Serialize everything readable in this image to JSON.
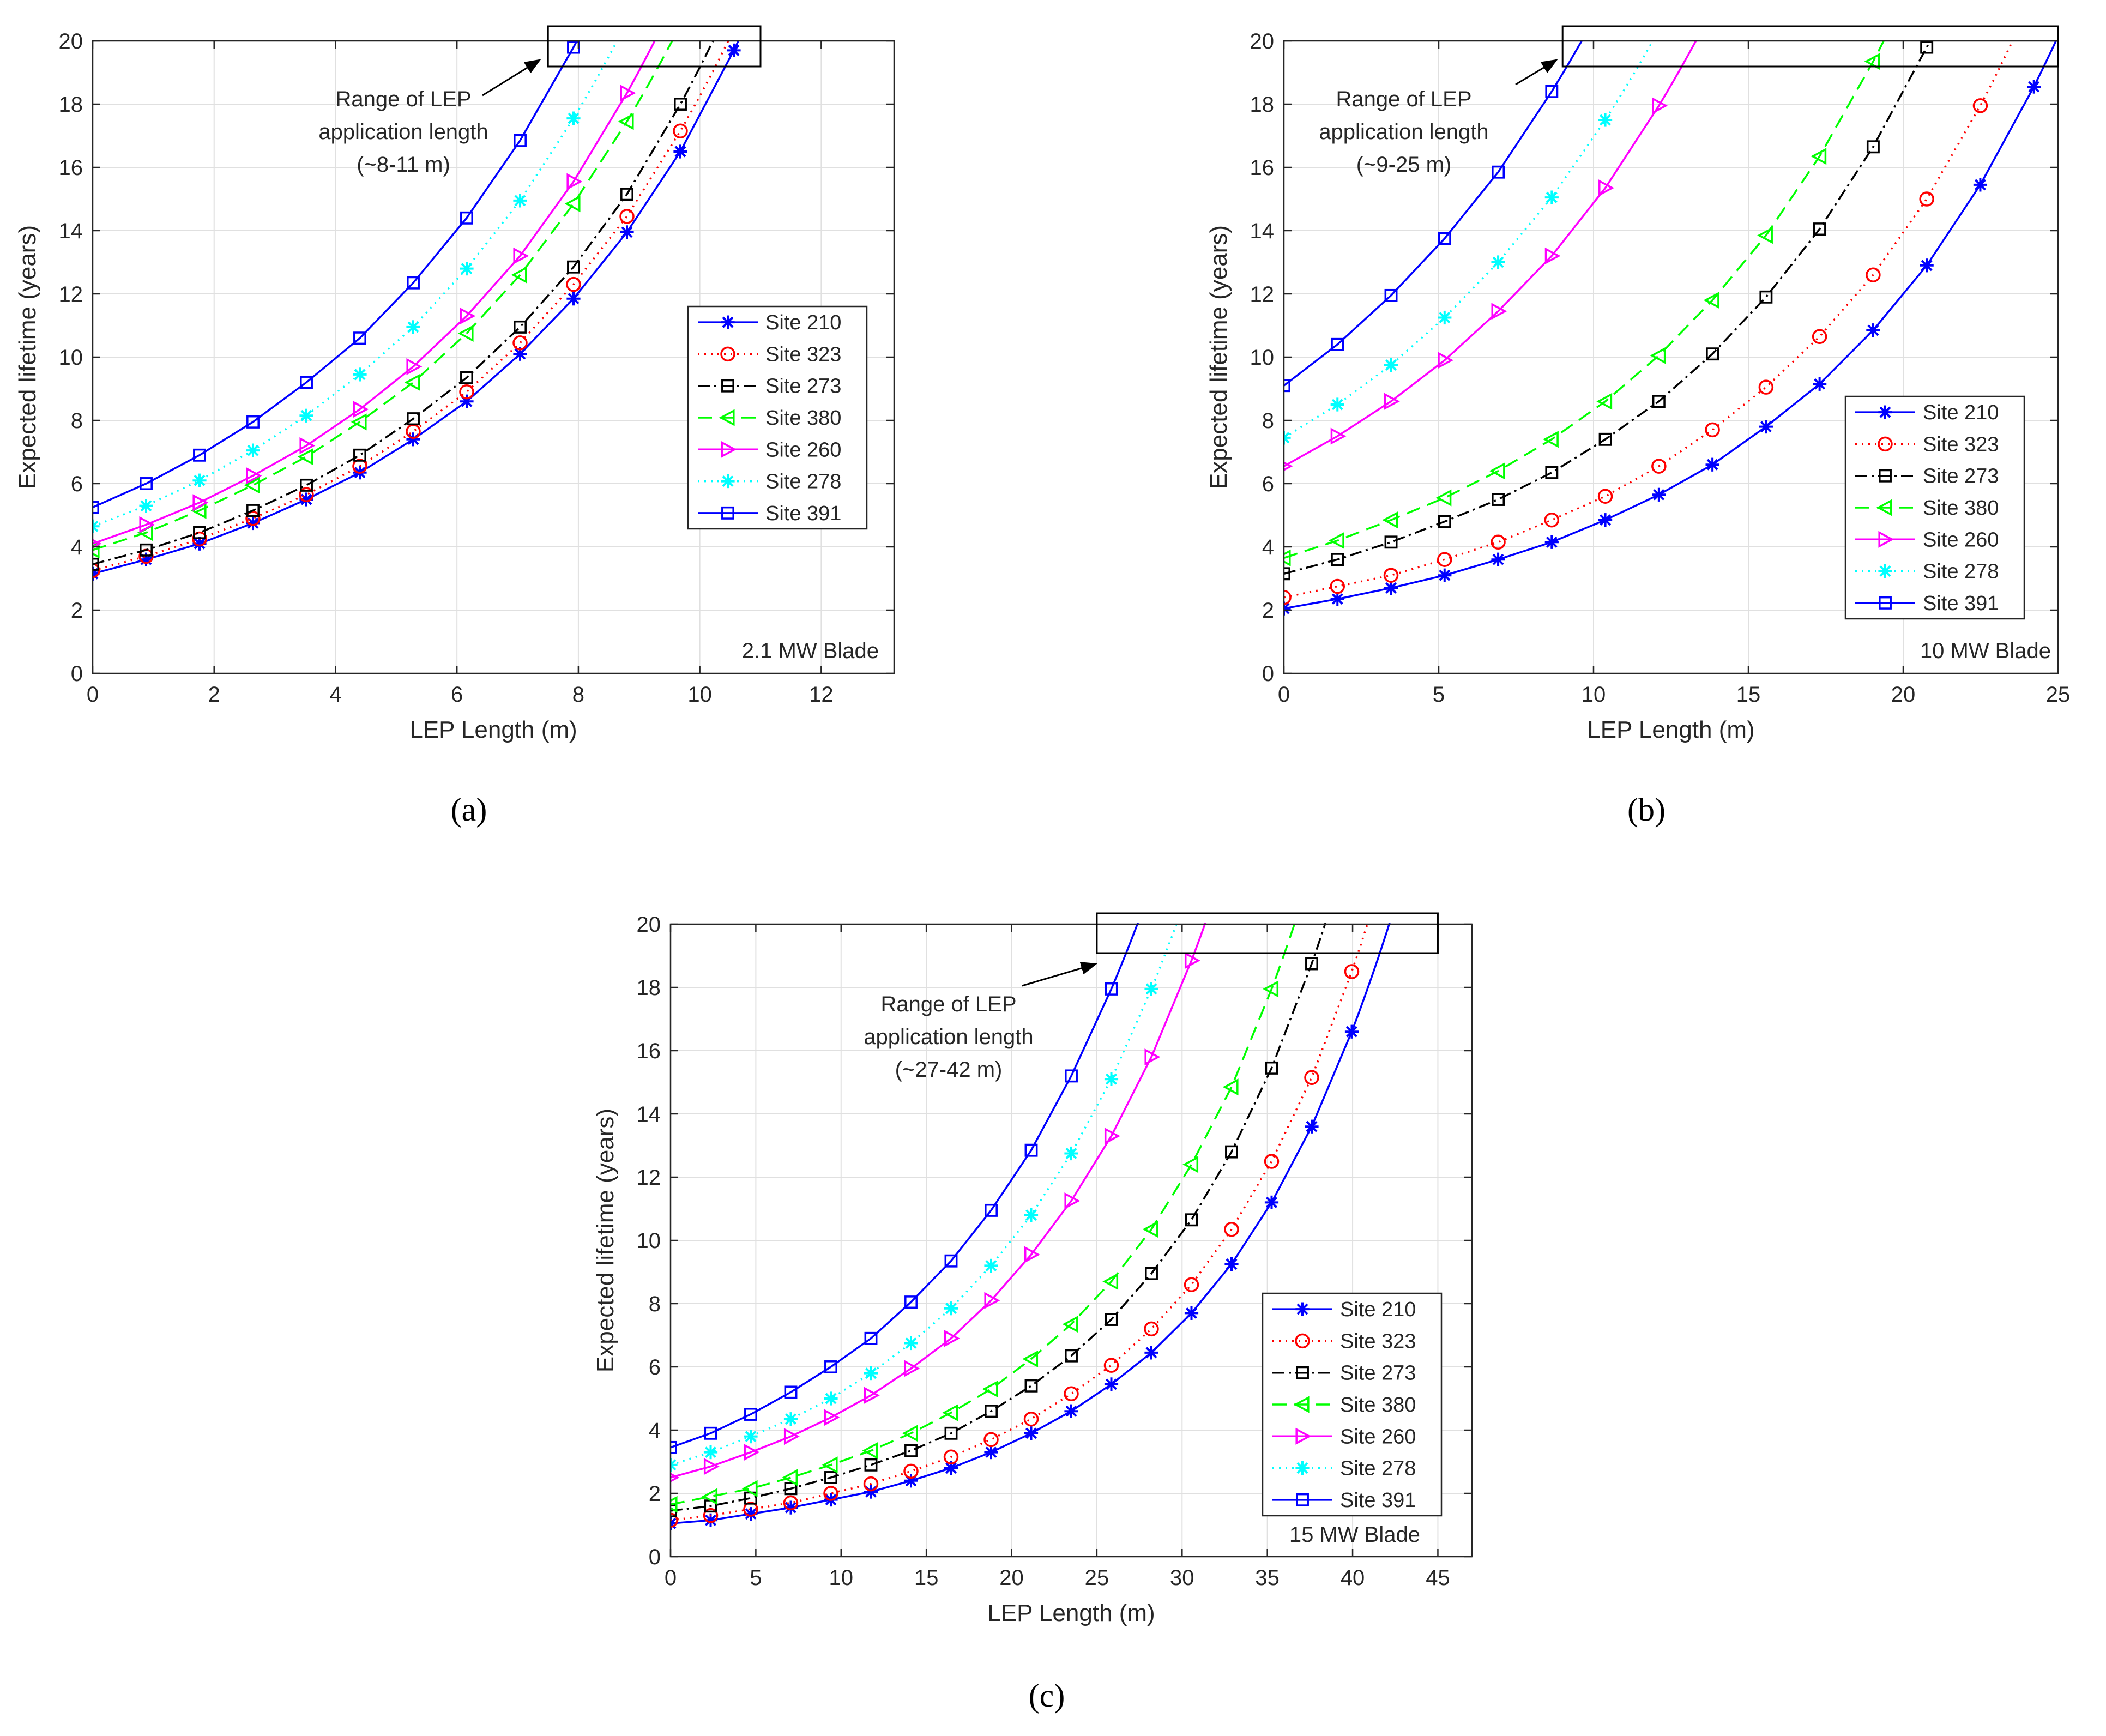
{
  "chart_data": [
    {
      "type": "line",
      "panel_label": "(a)",
      "blade_label": "2.1 MW Blade",
      "xlabel": "LEP Length (m)",
      "ylabel": "Expected lifetime (years)",
      "xlim": [
        0,
        13.2
      ],
      "ylim": [
        0,
        20
      ],
      "xticks": [
        0,
        2,
        4,
        6,
        8,
        10,
        12
      ],
      "yticks": [
        0,
        2,
        4,
        6,
        8,
        10,
        12,
        14,
        16,
        18,
        20
      ],
      "grid": true,
      "legend_position": "right-middle",
      "annotation": {
        "text": [
          "Range of LEP",
          "application length",
          "(~8-11 m)"
        ],
        "range_x": [
          7.5,
          11.0
        ]
      },
      "series": [
        {
          "name": "Site 210",
          "color": "#0000ff",
          "dash": "",
          "marker": "asterisk",
          "x": [
            0,
            0.88,
            1.76,
            2.64,
            3.52,
            4.4,
            5.28,
            6.16,
            7.04,
            7.92,
            8.8,
            9.68,
            10.56
          ],
          "y": [
            3.15,
            3.6,
            4.1,
            4.75,
            5.5,
            6.35,
            7.4,
            8.6,
            10.1,
            11.85,
            13.95,
            16.5,
            19.7
          ]
        },
        {
          "name": "Site 323",
          "color": "#ff0000",
          "dash": "3 9",
          "marker": "circle",
          "x": [
            0,
            0.88,
            1.76,
            2.64,
            3.52,
            4.4,
            5.28,
            6.16,
            7.04,
            7.92,
            8.8,
            9.68
          ],
          "y": [
            3.25,
            3.7,
            4.25,
            4.9,
            5.65,
            6.55,
            7.65,
            8.9,
            10.45,
            12.3,
            14.45,
            17.15
          ]
        },
        {
          "name": "Site 273",
          "color": "#000000",
          "dash": "22 8 4 8",
          "marker": "square",
          "x": [
            0,
            0.88,
            1.76,
            2.64,
            3.52,
            4.4,
            5.28,
            6.16,
            7.04,
            7.92,
            8.8,
            9.68
          ],
          "y": [
            3.45,
            3.9,
            4.45,
            5.15,
            5.95,
            6.9,
            8.05,
            9.35,
            10.95,
            12.85,
            15.15,
            18.0
          ]
        },
        {
          "name": "Site 380",
          "color": "#00ff00",
          "dash": "26 14",
          "marker": "triangle-left",
          "x": [
            0,
            0.88,
            1.76,
            2.64,
            3.52,
            4.4,
            5.28,
            6.16,
            7.04,
            7.92,
            8.8
          ],
          "y": [
            3.9,
            4.45,
            5.15,
            5.95,
            6.85,
            7.95,
            9.2,
            10.75,
            12.6,
            14.85,
            17.45
          ]
        },
        {
          "name": "Site 260",
          "color": "#ff00ff",
          "dash": "",
          "marker": "triangle-right",
          "x": [
            0,
            0.88,
            1.76,
            2.64,
            3.52,
            4.4,
            5.28,
            6.16,
            7.04,
            7.92,
            8.8
          ],
          "y": [
            4.1,
            4.7,
            5.4,
            6.25,
            7.2,
            8.35,
            9.7,
            11.3,
            13.2,
            15.55,
            18.35
          ]
        },
        {
          "name": "Site 278",
          "color": "#00ffff",
          "dash": "3 9",
          "marker": "asterisk",
          "x": [
            0,
            0.88,
            1.76,
            2.64,
            3.52,
            4.4,
            5.28,
            6.16,
            7.04,
            7.92
          ],
          "y": [
            4.65,
            5.3,
            6.1,
            7.05,
            8.15,
            9.45,
            10.95,
            12.8,
            14.95,
            17.55
          ]
        },
        {
          "name": "Site 391",
          "color": "#0000ff",
          "dash": "",
          "marker": "square",
          "x": [
            0,
            0.88,
            1.76,
            2.64,
            3.52,
            4.4,
            5.28,
            6.16,
            7.04,
            7.92
          ],
          "y": [
            5.25,
            6.0,
            6.9,
            7.95,
            9.2,
            10.6,
            12.35,
            14.4,
            16.85,
            19.8
          ]
        }
      ]
    },
    {
      "type": "line",
      "panel_label": "(b)",
      "blade_label": "10 MW Blade",
      "xlabel": "LEP Length (m)",
      "ylabel": "Expected lifetime (years)",
      "xlim": [
        0,
        25
      ],
      "ylim": [
        0,
        20
      ],
      "xticks": [
        0,
        5,
        10,
        15,
        20,
        25
      ],
      "yticks": [
        0,
        2,
        4,
        6,
        8,
        10,
        12,
        14,
        16,
        18,
        20
      ],
      "grid": true,
      "legend_position": "right-lower",
      "annotation": {
        "text": [
          "Range of LEP",
          "application length",
          "(~9-25 m)"
        ],
        "range_x": [
          9.0,
          25.0
        ]
      },
      "series": [
        {
          "name": "Site 210",
          "color": "#0000ff",
          "dash": "",
          "marker": "asterisk",
          "x": [
            0,
            1.73,
            3.46,
            5.19,
            6.92,
            8.65,
            10.38,
            12.11,
            13.84,
            15.57,
            17.3,
            19.03,
            20.76,
            22.49,
            24.22
          ],
          "y": [
            2.05,
            2.35,
            2.7,
            3.1,
            3.6,
            4.15,
            4.85,
            5.65,
            6.6,
            7.8,
            9.15,
            10.85,
            12.9,
            15.45,
            18.55
          ]
        },
        {
          "name": "Site 323",
          "color": "#ff0000",
          "dash": "3 9",
          "marker": "circle",
          "x": [
            0,
            1.73,
            3.46,
            5.19,
            6.92,
            8.65,
            10.38,
            12.11,
            13.84,
            15.57,
            17.3,
            19.03,
            20.76,
            22.49
          ],
          "y": [
            2.4,
            2.75,
            3.1,
            3.6,
            4.15,
            4.85,
            5.6,
            6.55,
            7.7,
            9.05,
            10.65,
            12.6,
            15.0,
            17.95
          ]
        },
        {
          "name": "Site 273",
          "color": "#000000",
          "dash": "22 8 4 8",
          "marker": "square",
          "x": [
            0,
            1.73,
            3.46,
            5.19,
            6.92,
            8.65,
            10.38,
            12.11,
            13.84,
            15.57,
            17.3,
            19.03,
            20.76
          ],
          "y": [
            3.15,
            3.6,
            4.15,
            4.8,
            5.5,
            6.35,
            7.4,
            8.6,
            10.1,
            11.9,
            14.05,
            16.65,
            19.8
          ]
        },
        {
          "name": "Site 380",
          "color": "#00ff00",
          "dash": "26 14",
          "marker": "triangle-left",
          "x": [
            0,
            1.73,
            3.46,
            5.19,
            6.92,
            8.65,
            10.38,
            12.11,
            13.84,
            15.57,
            17.3,
            19.03
          ],
          "y": [
            3.65,
            4.2,
            4.85,
            5.55,
            6.4,
            7.4,
            8.6,
            10.05,
            11.8,
            13.85,
            16.35,
            19.35
          ]
        },
        {
          "name": "Site 260",
          "color": "#ff00ff",
          "dash": "",
          "marker": "triangle-right",
          "x": [
            0,
            1.73,
            3.46,
            5.19,
            6.92,
            8.65,
            10.38,
            12.11
          ],
          "y": [
            6.55,
            7.5,
            8.6,
            9.9,
            11.45,
            13.2,
            15.35,
            17.95
          ]
        },
        {
          "name": "Site 278",
          "color": "#00ffff",
          "dash": "3 9",
          "marker": "asterisk",
          "x": [
            0,
            1.73,
            3.46,
            5.19,
            6.92,
            8.65,
            10.38
          ],
          "y": [
            7.45,
            8.5,
            9.75,
            11.25,
            13.0,
            15.05,
            17.5
          ]
        },
        {
          "name": "Site 391",
          "color": "#0000ff",
          "dash": "",
          "marker": "square",
          "x": [
            0,
            1.73,
            3.46,
            5.19,
            6.92,
            8.65
          ],
          "y": [
            9.1,
            10.4,
            11.95,
            13.75,
            15.85,
            18.4
          ]
        }
      ]
    },
    {
      "type": "line",
      "panel_label": "(c)",
      "blade_label": "15 MW Blade",
      "xlabel": "LEP Length (m)",
      "ylabel": "Expected lifetime (years)",
      "xlim": [
        0,
        47
      ],
      "ylim": [
        0,
        20
      ],
      "xticks": [
        0,
        5,
        10,
        15,
        20,
        25,
        30,
        35,
        40,
        45
      ],
      "yticks": [
        0,
        2,
        4,
        6,
        8,
        10,
        12,
        14,
        16,
        18,
        20
      ],
      "grid": true,
      "legend_position": "right-lower",
      "annotation": {
        "text": [
          "Range of LEP",
          "application length",
          "(~27-42 m)"
        ],
        "range_x": [
          25.0,
          45.0
        ]
      },
      "series": [
        {
          "name": "Site 210",
          "color": "#0000ff",
          "dash": "",
          "marker": "asterisk",
          "x": [
            0,
            2.35,
            4.7,
            7.05,
            9.4,
            11.75,
            14.1,
            16.45,
            18.8,
            21.15,
            23.5,
            25.85,
            28.2,
            30.55,
            32.9,
            35.25,
            37.6,
            39.95
          ],
          "y": [
            1.05,
            1.15,
            1.35,
            1.55,
            1.8,
            2.05,
            2.4,
            2.8,
            3.3,
            3.9,
            4.6,
            5.45,
            6.45,
            7.7,
            9.25,
            11.2,
            13.6,
            16.6
          ]
        },
        {
          "name": "Site 323",
          "color": "#ff0000",
          "dash": "3 9",
          "marker": "circle",
          "x": [
            0,
            2.35,
            4.7,
            7.05,
            9.4,
            11.75,
            14.1,
            16.45,
            18.8,
            21.15,
            23.5,
            25.85,
            28.2,
            30.55,
            32.9,
            35.25,
            37.6,
            39.95
          ],
          "y": [
            1.15,
            1.3,
            1.5,
            1.7,
            2.0,
            2.3,
            2.7,
            3.15,
            3.7,
            4.35,
            5.15,
            6.05,
            7.2,
            8.6,
            10.35,
            12.5,
            15.15,
            18.5
          ]
        },
        {
          "name": "Site 273",
          "color": "#000000",
          "dash": "22 8 4 8",
          "marker": "square",
          "x": [
            0,
            2.35,
            4.7,
            7.05,
            9.4,
            11.75,
            14.1,
            16.45,
            18.8,
            21.15,
            23.5,
            25.85,
            28.2,
            30.55,
            32.9,
            35.25,
            37.6
          ],
          "y": [
            1.45,
            1.6,
            1.85,
            2.15,
            2.5,
            2.9,
            3.35,
            3.9,
            4.6,
            5.4,
            6.35,
            7.5,
            8.95,
            10.65,
            12.8,
            15.45,
            18.75
          ]
        },
        {
          "name": "Site 380",
          "color": "#00ff00",
          "dash": "26 14",
          "marker": "triangle-left",
          "x": [
            0,
            2.35,
            4.7,
            7.05,
            9.4,
            11.75,
            14.1,
            16.45,
            18.8,
            21.15,
            23.5,
            25.85,
            28.2,
            30.55,
            32.9,
            35.25
          ],
          "y": [
            1.65,
            1.9,
            2.15,
            2.5,
            2.9,
            3.35,
            3.9,
            4.55,
            5.3,
            6.25,
            7.35,
            8.7,
            10.35,
            12.4,
            14.85,
            17.95
          ]
        },
        {
          "name": "Site 260",
          "color": "#ff00ff",
          "dash": "",
          "marker": "triangle-right",
          "x": [
            0,
            2.35,
            4.7,
            7.05,
            9.4,
            11.75,
            14.1,
            16.45,
            18.8,
            21.15,
            23.5,
            25.85,
            28.2,
            30.55
          ],
          "y": [
            2.5,
            2.85,
            3.3,
            3.8,
            4.4,
            5.1,
            5.95,
            6.9,
            8.1,
            9.55,
            11.25,
            13.3,
            15.8,
            18.85
          ]
        },
        {
          "name": "Site 278",
          "color": "#00ffff",
          "dash": "3 9",
          "marker": "asterisk",
          "x": [
            0,
            2.35,
            4.7,
            7.05,
            9.4,
            11.75,
            14.1,
            16.45,
            18.8,
            21.15,
            23.5,
            25.85,
            28.2
          ],
          "y": [
            2.9,
            3.3,
            3.8,
            4.35,
            5.0,
            5.8,
            6.75,
            7.85,
            9.2,
            10.8,
            12.75,
            15.1,
            17.95
          ]
        },
        {
          "name": "Site 391",
          "color": "#0000ff",
          "dash": "",
          "marker": "square",
          "x": [
            0,
            2.35,
            4.7,
            7.05,
            9.4,
            11.75,
            14.1,
            16.45,
            18.8,
            21.15,
            23.5,
            25.85
          ],
          "y": [
            3.45,
            3.9,
            4.5,
            5.2,
            6.0,
            6.9,
            8.05,
            9.35,
            10.95,
            12.85,
            15.2,
            17.95
          ]
        }
      ]
    }
  ]
}
